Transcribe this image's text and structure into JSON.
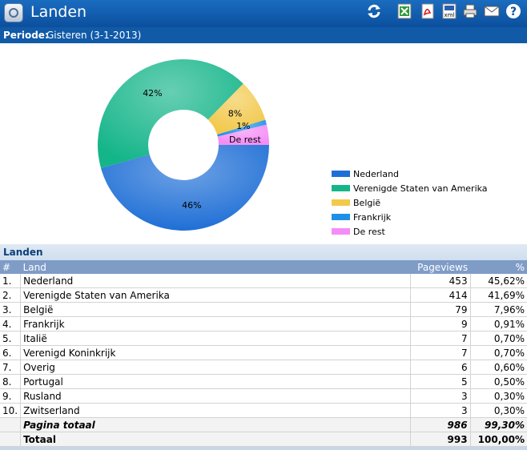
{
  "header": {
    "title": "Landen"
  },
  "toolbar": {
    "icons": [
      "refresh-icon",
      "excel-export-icon",
      "pdf-export-icon",
      "xml-export-icon",
      "print-icon",
      "mail-icon",
      "help-icon"
    ],
    "xml_label": "xml",
    "help_label": "?"
  },
  "period": {
    "label": "Periode:",
    "value": "Gisteren (3-1-2013)"
  },
  "chart_data": {
    "type": "pie",
    "categories": [
      "Nederland",
      "Verenigde Staten van Amerika",
      "België",
      "Frankrijk",
      "De rest"
    ],
    "values": [
      45.62,
      41.69,
      7.96,
      0.91,
      3.82
    ],
    "slice_labels": [
      "46%",
      "42%",
      "8%",
      "1%",
      "De rest"
    ],
    "colors": [
      "#1f6fd6",
      "#15b58a",
      "#f2c94c",
      "#1e90e8",
      "#f48df5"
    ],
    "legend_position": "right"
  },
  "section": {
    "title": "Landen"
  },
  "table": {
    "headers": [
      "#",
      "Land",
      "Pageviews",
      "%"
    ],
    "rows": [
      [
        "1.",
        "Nederland",
        "453",
        "45,62%"
      ],
      [
        "2.",
        "Verenigde Staten van Amerika",
        "414",
        "41,69%"
      ],
      [
        "3.",
        "België",
        "79",
        "7,96%"
      ],
      [
        "4.",
        "Frankrijk",
        "9",
        "0,91%"
      ],
      [
        "5.",
        "Italië",
        "7",
        "0,70%"
      ],
      [
        "6.",
        "Verenigd Koninkrijk",
        "7",
        "0,70%"
      ],
      [
        "7.",
        "Overig",
        "6",
        "0,60%"
      ],
      [
        "8.",
        "Portugal",
        "5",
        "0,50%"
      ],
      [
        "9.",
        "Rusland",
        "3",
        "0,30%"
      ],
      [
        "10.",
        "Zwitserland",
        "3",
        "0,30%"
      ]
    ],
    "subtotal": {
      "label": "Pagina totaal",
      "pageviews": "986",
      "percent": "99,30%"
    },
    "total": {
      "label": "Totaal",
      "pageviews": "993",
      "percent": "100,00%"
    }
  }
}
